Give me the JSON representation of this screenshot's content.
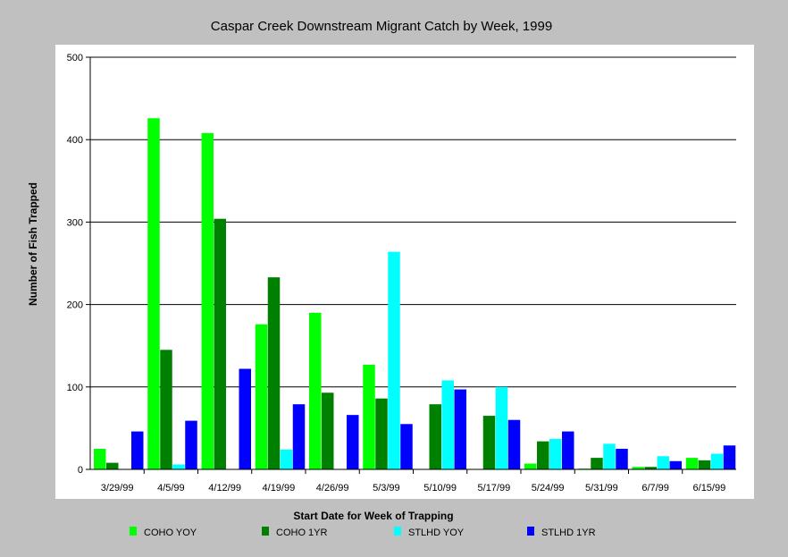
{
  "chart_data": {
    "type": "bar",
    "title": "Caspar Creek Downstream Migrant Catch by Week, 1999",
    "xlabel": "Start Date for Week of Trapping",
    "ylabel": "Number of Fish Trapped",
    "ylim": [
      0,
      500
    ],
    "yticks": [
      0,
      100,
      200,
      300,
      400,
      500
    ],
    "grid": true,
    "legend_position": "bottom",
    "categories": [
      "3/29/99",
      "4/5/99",
      "4/12/99",
      "4/19/99",
      "4/26/99",
      "5/3/99",
      "5/10/99",
      "5/17/99",
      "5/24/99",
      "5/31/99",
      "6/7/99",
      "6/15/99"
    ],
    "series": [
      {
        "name": "COHO YOY",
        "color": "#00ff00",
        "values": [
          25,
          426,
          408,
          176,
          190,
          127,
          0,
          0,
          7,
          1,
          3,
          14
        ]
      },
      {
        "name": "COHO 1YR",
        "color": "#008000",
        "values": [
          8,
          145,
          304,
          233,
          93,
          86,
          79,
          65,
          34,
          14,
          3,
          11
        ]
      },
      {
        "name": "STLHD YOY",
        "color": "#00ffff",
        "values": [
          0,
          6,
          0,
          24,
          0,
          264,
          108,
          100,
          37,
          31,
          16,
          19
        ]
      },
      {
        "name": "STLHD 1YR",
        "color": "#0000ff",
        "values": [
          46,
          59,
          122,
          79,
          66,
          55,
          97,
          60,
          46,
          25,
          10,
          29
        ]
      }
    ]
  }
}
